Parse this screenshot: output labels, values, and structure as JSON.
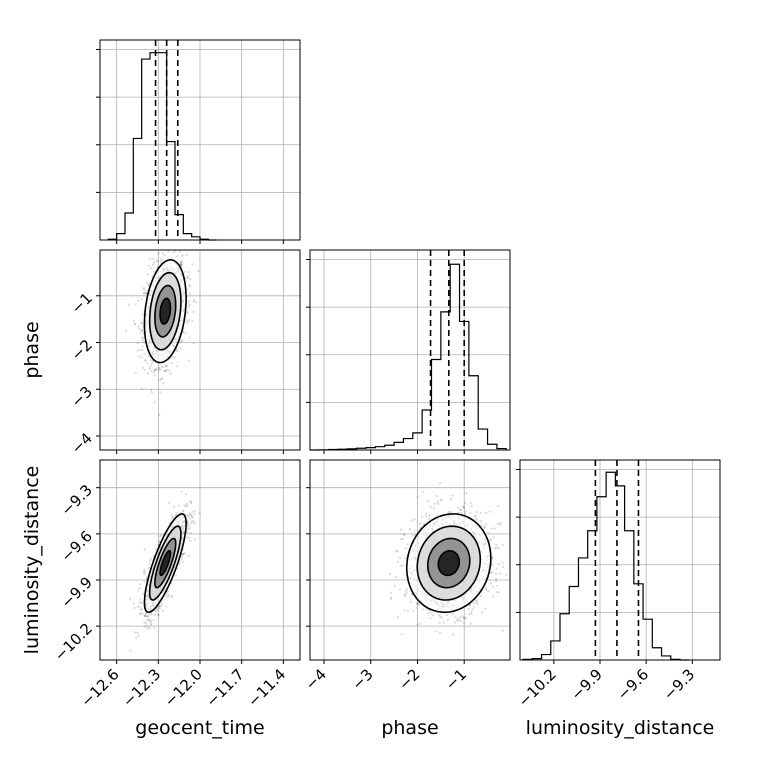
{
  "chart_data": {
    "type": "corner",
    "title": "",
    "parameters": [
      "geocent_time",
      "phase",
      "luminosity_distance"
    ],
    "axes": {
      "geocent_time": {
        "label": "geocent_time",
        "range": [
          -12.72,
          -11.28
        ],
        "ticks": [
          -12.6,
          -12.3,
          -12.0,
          -11.7,
          -11.4
        ],
        "tick_labels": [
          "−12.6",
          "−12.3",
          "−12.0",
          "−11.7",
          "−11.4"
        ],
        "quantiles": [
          -12.32,
          -12.24,
          -12.16
        ]
      },
      "phase": {
        "label": "phase",
        "range": [
          -4.3,
          -0.02
        ],
        "ticks": [
          -4,
          -3,
          -2,
          -1
        ],
        "tick_labels": [
          "−4",
          "−3",
          "−2",
          "−1"
        ],
        "quantiles": [
          -1.72,
          -1.33,
          -1.0
        ]
      },
      "luminosity_distance": {
        "label": "luminosity_distance",
        "range": [
          -10.42,
          -9.12
        ],
        "ticks": [
          -10.2,
          -9.9,
          -9.6,
          -9.3
        ],
        "tick_labels": [
          "−10.2",
          "−9.9",
          "−9.6",
          "−9.3"
        ],
        "quantiles": [
          -9.93,
          -9.79,
          -9.65
        ]
      }
    },
    "histograms": {
      "geocent_time": {
        "bin_edges": [
          -12.66,
          -12.6,
          -12.54,
          -12.48,
          -12.42,
          -12.36,
          -12.3,
          -12.24,
          -12.18,
          -12.12,
          -12.06,
          -12.0,
          -11.94,
          -11.88
        ],
        "counts": [
          5,
          40,
          170,
          640,
          1140,
          1180,
          1180,
          620,
          160,
          40,
          20,
          5,
          0
        ],
        "max_count": 1200
      },
      "phase": {
        "bin_edges": [
          -4.3,
          -4.1,
          -3.9,
          -3.7,
          -3.5,
          -3.3,
          -3.1,
          -2.9,
          -2.7,
          -2.5,
          -2.3,
          -2.1,
          -1.9,
          -1.7,
          -1.5,
          -1.3,
          -1.1,
          -0.9,
          -0.7,
          -0.5,
          -0.3,
          -0.1
        ],
        "counts": [
          0,
          2,
          5,
          8,
          12,
          18,
          25,
          35,
          50,
          80,
          120,
          180,
          420,
          950,
          1450,
          1950,
          1350,
          780,
          220,
          60,
          15
        ],
        "max_count": 2000
      },
      "luminosity_distance": {
        "bin_edges": [
          -10.4,
          -10.34,
          -10.28,
          -10.22,
          -10.16,
          -10.1,
          -10.04,
          -9.98,
          -9.92,
          -9.86,
          -9.8,
          -9.74,
          -9.68,
          -9.62,
          -9.56,
          -9.5,
          -9.44,
          -9.38,
          -9.32
        ],
        "counts": [
          5,
          10,
          40,
          140,
          340,
          540,
          750,
          950,
          1200,
          1380,
          1280,
          950,
          560,
          300,
          90,
          30,
          5,
          0
        ],
        "max_count": 1400
      }
    },
    "pairs": [
      {
        "x": "geocent_time",
        "y": "phase",
        "mean": [
          -12.25,
          -1.33
        ],
        "std": [
          0.075,
          0.55
        ],
        "corr": 0.25,
        "contour_sigmas": [
          0.5,
          1.0,
          1.5,
          2.0
        ]
      },
      {
        "x": "geocent_time",
        "y": "luminosity_distance",
        "mean": [
          -12.25,
          -9.79
        ],
        "std": [
          0.075,
          0.16
        ],
        "corr": 0.8,
        "contour_sigmas": [
          0.5,
          1.0,
          1.5,
          2.0
        ]
      },
      {
        "x": "phase",
        "y": "luminosity_distance",
        "mean": [
          -1.33,
          -9.79
        ],
        "std": [
          0.45,
          0.16
        ],
        "corr": 0.1,
        "contour_sigmas": [
          0.5,
          1.0,
          1.5,
          2.0
        ]
      }
    ],
    "grid": true
  }
}
